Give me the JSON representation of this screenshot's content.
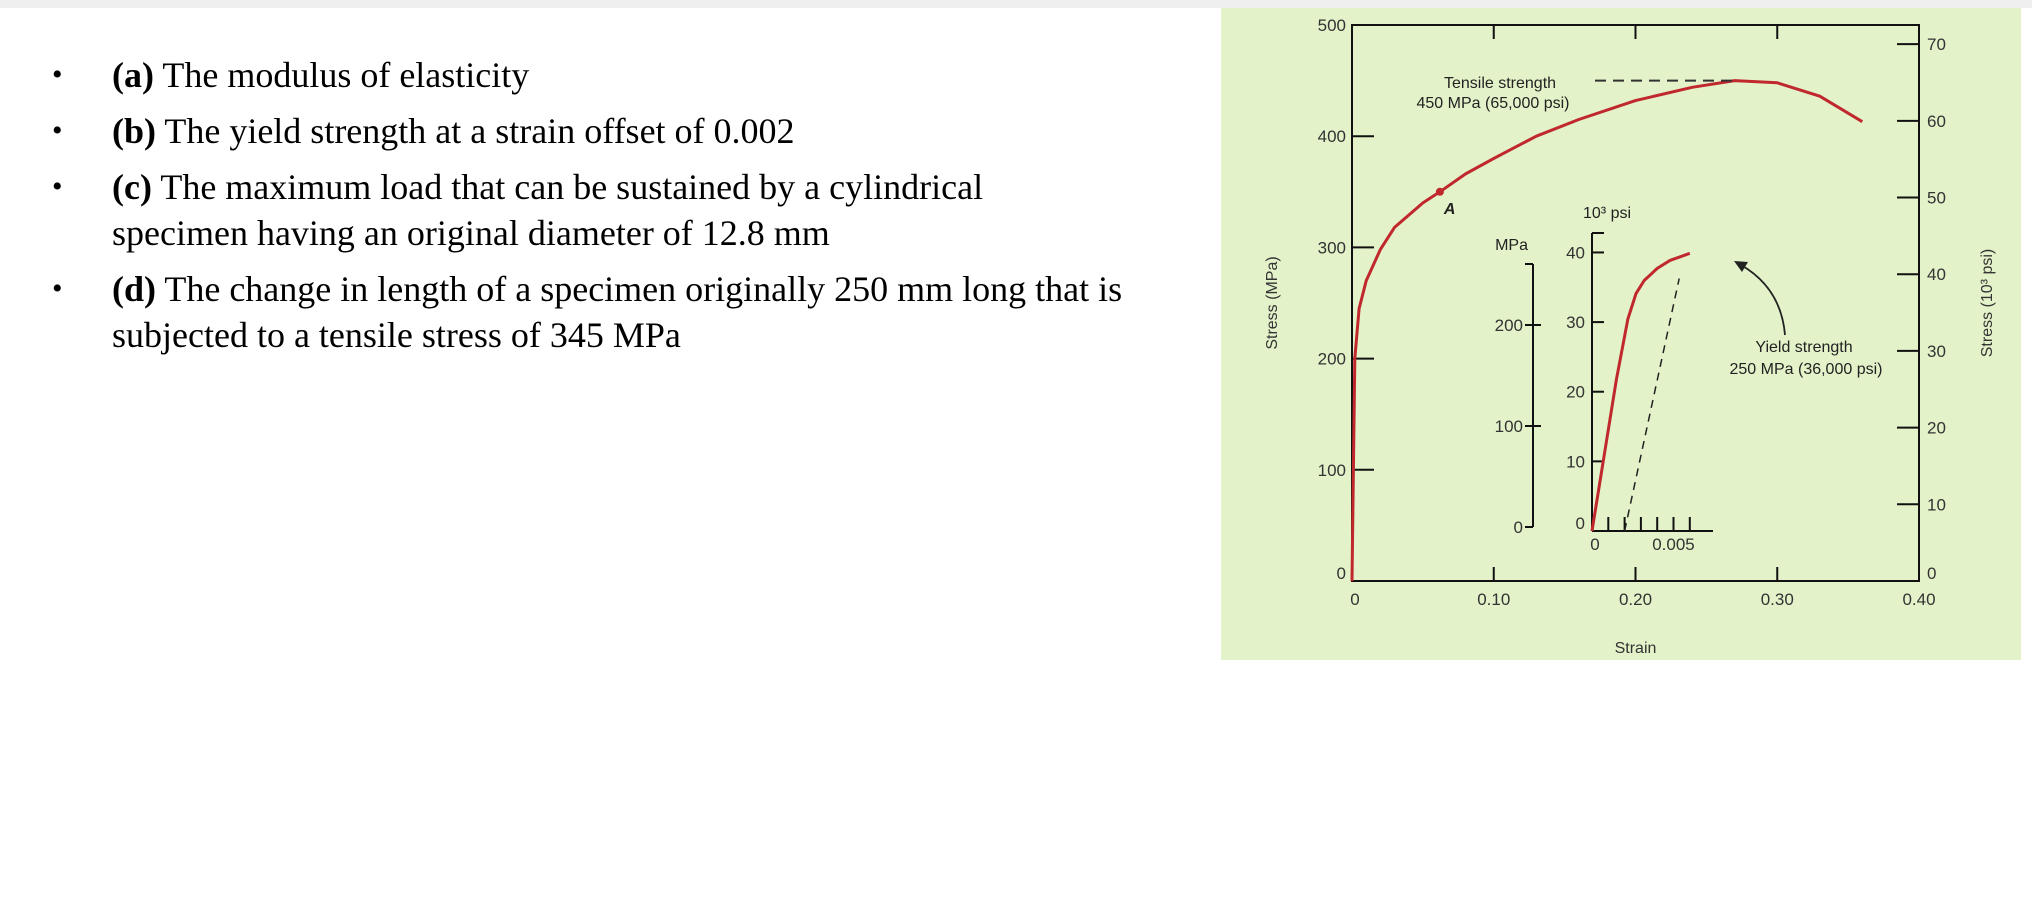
{
  "questions": [
    {
      "label": "(a)",
      "lines": [
        "The modulus of elasticity"
      ]
    },
    {
      "label": "(b)",
      "lines": [
        "The yield strength at a strain offset of 0.002"
      ]
    },
    {
      "label": "(c)",
      "lines": [
        "The maximum load that can be sustained by a cylindrical",
        "specimen having an original diameter of 12.8 mm"
      ]
    },
    {
      "label": "(d)",
      "lines": [
        "The change in length of a specimen originally 250 mm long that is",
        "subjected to a tensile stress of 345 MPa"
      ]
    }
  ],
  "chart_data": {
    "type": "line",
    "background": "#e3f2c9",
    "curve_color": "#c0282e",
    "main": {
      "xlabel": "Strain",
      "ylabel_left": "Stress (MPa)",
      "ylabel_right": "Stress (10³ psi)",
      "xlim": [
        0,
        0.4
      ],
      "ylim_left": [
        0,
        500
      ],
      "ylim_right": [
        0,
        72.5
      ],
      "x_ticks": [
        "0",
        "0.10",
        "0.20",
        "0.30",
        "0.40"
      ],
      "x_tick_values": [
        0,
        0.1,
        0.2,
        0.3,
        0.4
      ],
      "y_ticks_left": [
        "0",
        "100",
        "200",
        "300",
        "400",
        "500"
      ],
      "y_tick_values_left": [
        0,
        100,
        200,
        300,
        400,
        500
      ],
      "y_ticks_right": [
        "0",
        "10",
        "20",
        "30",
        "40",
        "50",
        "60",
        "70"
      ],
      "y_tick_values_right": [
        0,
        10,
        20,
        30,
        40,
        50,
        60,
        70
      ],
      "series": [
        {
          "x": [
            0,
            0.002,
            0.005,
            0.01,
            0.02,
            0.03,
            0.05,
            0.062,
            0.08,
            0.1,
            0.13,
            0.16,
            0.2,
            0.24,
            0.27,
            0.3,
            0.33,
            0.36
          ],
          "y": [
            0,
            200,
            245,
            270,
            298,
            318,
            340,
            350,
            366,
            380,
            400,
            415,
            432,
            444,
            450,
            448,
            436,
            413
          ]
        }
      ],
      "point_A": {
        "label": "A",
        "x": 0.062,
        "y": 350
      },
      "tensile_annotation": {
        "line1": "Tensile strength",
        "line2": "450 MPa (65,000 psi)",
        "value": 450
      }
    },
    "inset": {
      "xlim": [
        0,
        0.01
      ],
      "ylim_mpa": [
        0,
        300
      ],
      "x_ticks": [
        "0",
        "0.005"
      ],
      "x_tick_values": [
        0,
        0.005
      ],
      "y_ticks_mpa": [
        "0",
        "100",
        "200"
      ],
      "y_tick_values_mpa": [
        0,
        100,
        200
      ],
      "y_ticks_psi": [
        "0",
        "10",
        "20",
        "30",
        "40"
      ],
      "y_tick_values_psi": [
        0,
        10,
        20,
        30,
        40
      ],
      "mpa_label": "MPa",
      "psi_label": "10³ psi",
      "series": [
        {
          "x": [
            0,
            0.0015,
            0.0022,
            0.0027,
            0.0032,
            0.004,
            0.0048,
            0.0055,
            0.006
          ],
          "y": [
            0,
            150,
            210,
            235,
            248,
            260,
            268,
            272,
            275
          ]
        }
      ],
      "offset_line": {
        "x0": 0.002,
        "y0": 0,
        "x1": 0.00535,
        "y1": 250
      },
      "yield_annotation": {
        "line1": "Yield strength",
        "line2": "250 MPa (36,000 psi)",
        "value": 250
      }
    }
  }
}
